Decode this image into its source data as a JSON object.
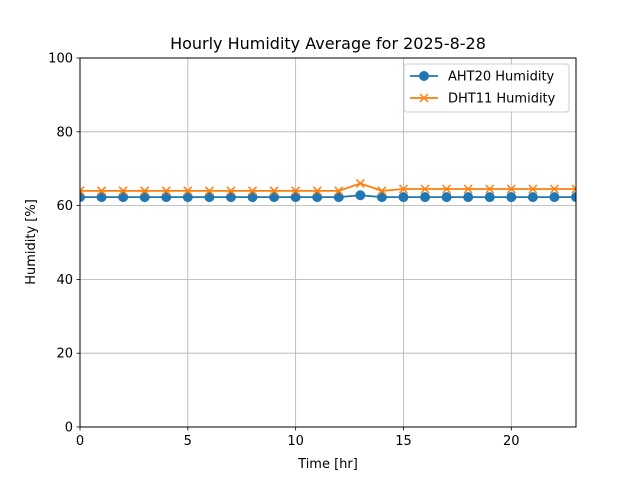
{
  "chart_data": {
    "type": "line",
    "title": "Hourly Humidity Average for 2025-8-28",
    "xlabel": "Time [hr]",
    "ylabel": "Humidity [%]",
    "xlim": [
      0,
      23
    ],
    "ylim": [
      0,
      100
    ],
    "xticks": [
      0,
      5,
      10,
      15,
      20
    ],
    "yticks": [
      0,
      20,
      40,
      60,
      80,
      100
    ],
    "grid": true,
    "legend_position": "top-right",
    "x": [
      0,
      1,
      2,
      3,
      4,
      5,
      6,
      7,
      8,
      9,
      10,
      11,
      12,
      13,
      14,
      15,
      16,
      17,
      18,
      19,
      20,
      21,
      22,
      23
    ],
    "series": [
      {
        "name": "AHT20 Humidity",
        "color": "#1f77b4",
        "marker": "circle",
        "values": [
          62.3,
          62.3,
          62.3,
          62.3,
          62.3,
          62.3,
          62.3,
          62.3,
          62.3,
          62.3,
          62.3,
          62.3,
          62.3,
          62.8,
          62.3,
          62.3,
          62.3,
          62.3,
          62.3,
          62.3,
          62.3,
          62.3,
          62.3,
          62.3
        ]
      },
      {
        "name": "DHT11 Humidity",
        "color": "#ff7f0e",
        "marker": "x",
        "values": [
          64.0,
          64.0,
          64.0,
          64.0,
          64.0,
          64.0,
          64.0,
          64.0,
          64.0,
          64.0,
          64.0,
          64.0,
          64.0,
          66.0,
          64.0,
          64.5,
          64.5,
          64.5,
          64.5,
          64.5,
          64.5,
          64.5,
          64.5,
          64.5
        ]
      }
    ]
  }
}
